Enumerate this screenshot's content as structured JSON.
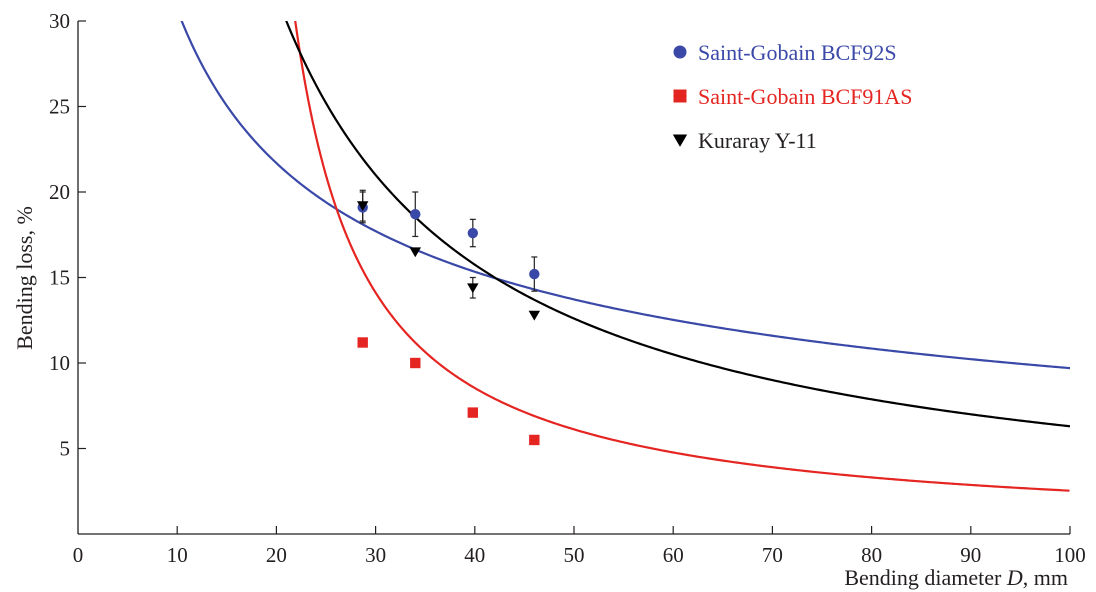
{
  "chart_data": {
    "type": "scatter",
    "title": "",
    "xlabel_prefix": "Bending diameter ",
    "xlabel_var": "D",
    "xlabel_suffix": ", mm",
    "ylabel": "Bending loss, %",
    "xlim": [
      0,
      100
    ],
    "ylim": [
      0,
      30
    ],
    "x_ticks": [
      0,
      10,
      20,
      30,
      40,
      50,
      60,
      70,
      80,
      90,
      100
    ],
    "y_ticks": [
      5,
      10,
      15,
      20,
      25,
      30
    ],
    "grid": false,
    "legend_position": "top-right",
    "series": [
      {
        "name": "Saint-Gobain BCF92S",
        "color": "#3a49a8",
        "marker": "circle",
        "x": [
          28.7,
          34,
          39.8,
          46
        ],
        "y": [
          19.1,
          18.7,
          17.6,
          15.2
        ],
        "y_err": [
          0.9,
          1.3,
          0.8,
          1.0
        ],
        "fit": {
          "k": 97,
          "p": 0.5
        }
      },
      {
        "name": "Saint-Gobain BCF91AS",
        "color": "#e52521",
        "marker": "square",
        "x": [
          28.7,
          34,
          39.8,
          46
        ],
        "y": [
          11.2,
          10.0,
          7.1,
          5.5
        ],
        "y_err": [
          0,
          0,
          0,
          0
        ],
        "fit": {
          "a": 216,
          "c": 14.7
        }
      },
      {
        "name": "Kuraray Y-11",
        "color": "#000000",
        "marker": "triangle-down",
        "x": [
          28.7,
          34,
          39.8,
          46
        ],
        "y": [
          19.2,
          16.5,
          14.4,
          12.8
        ],
        "y_err": [
          0.9,
          0,
          0.6,
          0
        ],
        "fit": {
          "k": 630,
          "p": 1.0
        }
      }
    ]
  }
}
